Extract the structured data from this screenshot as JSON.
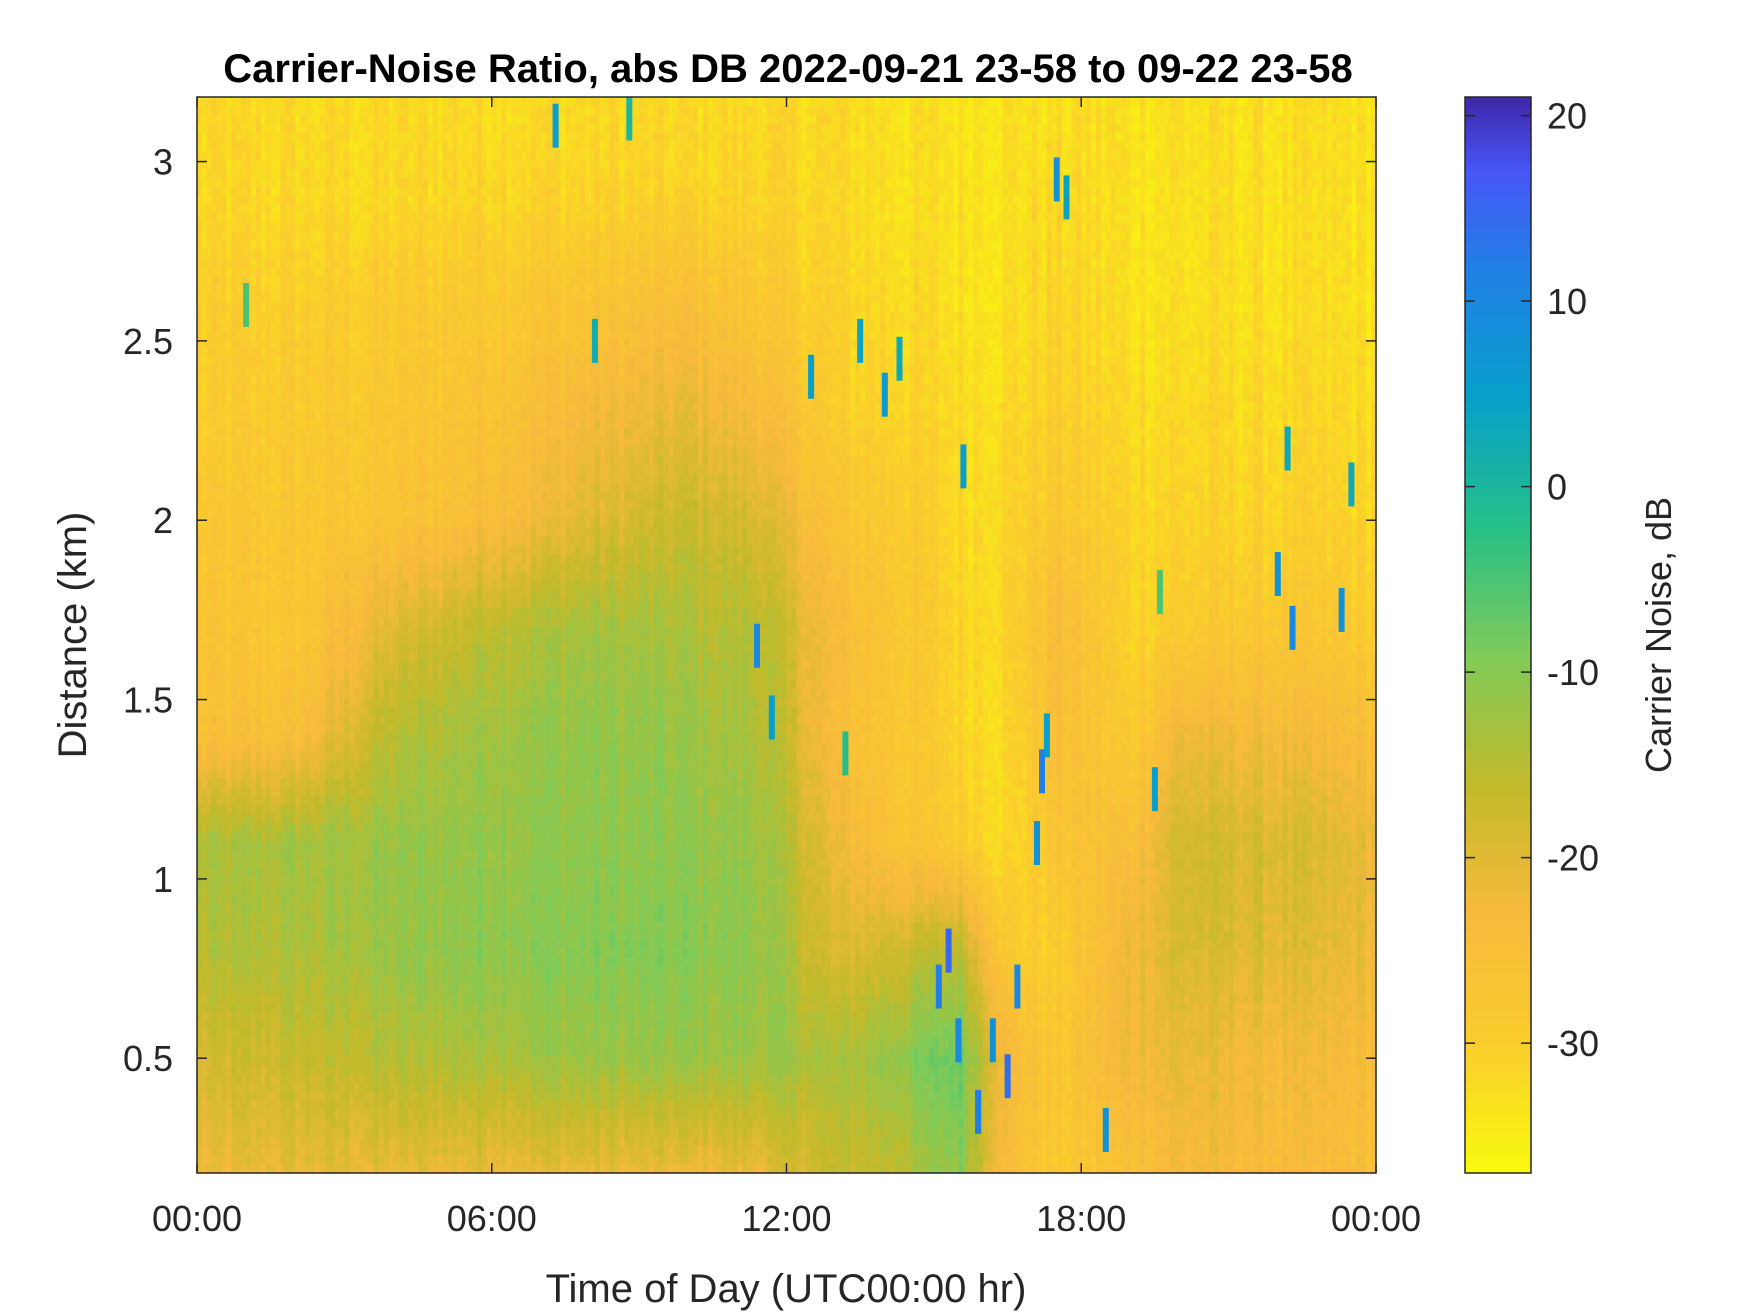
{
  "chart_data": {
    "type": "heatmap",
    "title": "Carrier-Noise Ratio, abs DB 2022-09-21 23-58 to 09-22 23-58",
    "xlabel": "Time of Day (UTC00:00 hr)",
    "ylabel": "Distance (km)",
    "x_range_hours": [
      0,
      24
    ],
    "y_range_km": [
      0.18,
      3.18
    ],
    "x_ticks": [
      {
        "value": 0,
        "label": "00:00"
      },
      {
        "value": 6,
        "label": "06:00"
      },
      {
        "value": 12,
        "label": "12:00"
      },
      {
        "value": 18,
        "label": "18:00"
      },
      {
        "value": 24,
        "label": "00:00"
      }
    ],
    "y_ticks": [
      {
        "value": 0.5,
        "label": "0.5"
      },
      {
        "value": 1,
        "label": "1"
      },
      {
        "value": 1.5,
        "label": "1.5"
      },
      {
        "value": 2,
        "label": "2"
      },
      {
        "value": 2.5,
        "label": "2.5"
      },
      {
        "value": 3,
        "label": "3"
      }
    ],
    "colorbar": {
      "label": "Carrier Noise, dB",
      "range": [
        -37,
        21
      ],
      "ticks": [
        {
          "value": 20,
          "label": "20"
        },
        {
          "value": 10,
          "label": "10"
        },
        {
          "value": 0,
          "label": "0"
        },
        {
          "value": -10,
          "label": "-10"
        },
        {
          "value": -20,
          "label": "-20"
        },
        {
          "value": -30,
          "label": "-30"
        }
      ],
      "colormap": "parula"
    },
    "grid": false,
    "value_rows_note_removed": true,
    "grid_hours": [
      0,
      2,
      4,
      6,
      8,
      10,
      11.5,
      13,
      14.5,
      15.5,
      16.5,
      17.5,
      19,
      20,
      22,
      24
    ],
    "grid_km": [
      0.18,
      0.5,
      0.8,
      1.1,
      1.4,
      1.7,
      2.0,
      2.3,
      2.6,
      2.9,
      3.18
    ],
    "values": [
      [
        -22,
        -21,
        -21,
        -21,
        -21,
        -22,
        -21,
        -17,
        -15,
        -10,
        -25,
        -29,
        -26,
        -23,
        -24,
        -25
      ],
      [
        -19,
        -17,
        -15,
        -13,
        -12,
        -12,
        -12,
        -14,
        -10,
        -7,
        -23,
        -28,
        -22,
        -21,
        -23,
        -24
      ],
      [
        -15,
        -14,
        -12,
        -10,
        -10,
        -10,
        -11,
        -20,
        -17,
        -15,
        -29,
        -30,
        -22,
        -19,
        -20,
        -22
      ],
      [
        -14,
        -13,
        -12,
        -11,
        -11,
        -11,
        -12,
        -22,
        -27,
        -29,
        -32,
        -27,
        -25,
        -18,
        -19,
        -21
      ],
      [
        -26,
        -25,
        -15,
        -12,
        -11,
        -12,
        -14,
        -25,
        -28,
        -31,
        -32,
        -25,
        -29,
        -22,
        -23,
        -25
      ],
      [
        -27,
        -28,
        -20,
        -15,
        -13,
        -14,
        -15,
        -24,
        -28,
        -31,
        -31,
        -24,
        -31,
        -29,
        -28,
        -29
      ],
      [
        -28,
        -28,
        -27,
        -24,
        -20,
        -17,
        -19,
        -27,
        -29,
        -32,
        -31,
        -28,
        -31,
        -31,
        -31,
        -31
      ],
      [
        -30,
        -29,
        -28,
        -26,
        -23,
        -21,
        -24,
        -30,
        -31,
        -32,
        -32,
        -30,
        -32,
        -32,
        -32,
        -32
      ],
      [
        -30,
        -30,
        -29,
        -28,
        -27,
        -25,
        -28,
        -31,
        -32,
        -33,
        -33,
        -31,
        -33,
        -33,
        -33,
        -33
      ],
      [
        -32,
        -32,
        -32,
        -31,
        -31,
        -31,
        -31,
        -32,
        -33,
        -33,
        -33,
        -32,
        -33,
        -33,
        -33,
        -33
      ],
      [
        -32,
        -32,
        -32,
        -32,
        -32,
        -32,
        -32,
        -32,
        -33,
        -33,
        -33,
        -33,
        -33,
        -33,
        -33,
        -33
      ]
    ],
    "strong_echoes": [
      {
        "x": 1.0,
        "y": 2.6,
        "value": -5
      },
      {
        "x": 7.3,
        "y": 3.1,
        "value": 5
      },
      {
        "x": 8.8,
        "y": 3.12,
        "value": 0
      },
      {
        "x": 8.1,
        "y": 2.5,
        "value": 2
      },
      {
        "x": 11.4,
        "y": 1.65,
        "value": 10
      },
      {
        "x": 11.7,
        "y": 1.45,
        "value": 5
      },
      {
        "x": 12.5,
        "y": 2.4,
        "value": 5
      },
      {
        "x": 14.0,
        "y": 2.35,
        "value": 6
      },
      {
        "x": 14.3,
        "y": 2.45,
        "value": 3
      },
      {
        "x": 13.5,
        "y": 2.5,
        "value": 4
      },
      {
        "x": 13.2,
        "y": 1.35,
        "value": -2
      },
      {
        "x": 15.3,
        "y": 0.8,
        "value": 15
      },
      {
        "x": 15.1,
        "y": 0.7,
        "value": 12
      },
      {
        "x": 15.5,
        "y": 0.55,
        "value": 10
      },
      {
        "x": 15.9,
        "y": 0.35,
        "value": 12
      },
      {
        "x": 16.2,
        "y": 0.55,
        "value": 8
      },
      {
        "x": 16.5,
        "y": 0.45,
        "value": 14
      },
      {
        "x": 16.7,
        "y": 0.7,
        "value": 10
      },
      {
        "x": 17.2,
        "y": 1.3,
        "value": 12
      },
      {
        "x": 17.1,
        "y": 1.1,
        "value": 8
      },
      {
        "x": 17.3,
        "y": 1.4,
        "value": 5
      },
      {
        "x": 17.5,
        "y": 2.95,
        "value": 8
      },
      {
        "x": 17.7,
        "y": 2.9,
        "value": 4
      },
      {
        "x": 15.6,
        "y": 2.15,
        "value": 5
      },
      {
        "x": 18.5,
        "y": 0.3,
        "value": 8
      },
      {
        "x": 19.5,
        "y": 1.25,
        "value": 5
      },
      {
        "x": 19.6,
        "y": 1.8,
        "value": -5
      },
      {
        "x": 22.0,
        "y": 1.85,
        "value": 8
      },
      {
        "x": 22.3,
        "y": 1.7,
        "value": 10
      },
      {
        "x": 22.2,
        "y": 2.2,
        "value": 3
      },
      {
        "x": 23.3,
        "y": 1.75,
        "value": 8
      },
      {
        "x": 23.5,
        "y": 2.1,
        "value": 3
      }
    ]
  }
}
